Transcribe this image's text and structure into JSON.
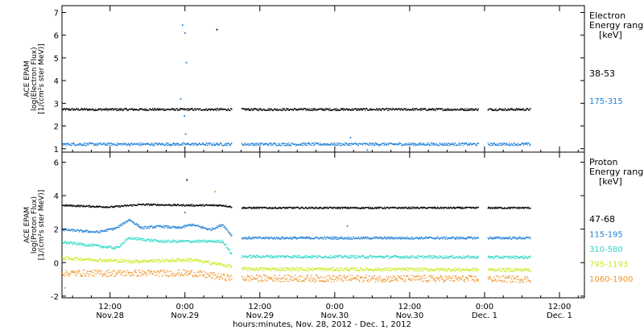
{
  "chart_data": {
    "type": "scatter",
    "xlabel": "hours:minutes, Nov. 28, 2012 - Dec. 1, 2012",
    "x_ticks": [
      {
        "time": "12:00",
        "date": "Nov.28",
        "hours": 12
      },
      {
        "time": "0:00",
        "date": "Nov.29",
        "hours": 24
      },
      {
        "time": "12:00",
        "date": "Nov.29",
        "hours": 36
      },
      {
        "time": "0:00",
        "date": "Nov.30",
        "hours": 48
      },
      {
        "time": "12:00",
        "date": "Nov.30",
        "hours": 60
      },
      {
        "time": "0:00",
        "date": "Dec. 1",
        "hours": 72
      },
      {
        "time": "12:00",
        "date": "Dec. 1",
        "hours": 84
      }
    ],
    "xlim": [
      4.3,
      88
    ],
    "x_unit_note": "hours after 0:00 Nov. 28, 2012",
    "data_gaps_hours": [
      [
        31.5,
        33.0
      ],
      [
        71.0,
        72.4
      ]
    ],
    "data_end_hours": 79.3,
    "panels": [
      {
        "id": "electron",
        "ylabel": [
          "ACE EPAM",
          "log(Electron Flux)",
          "[1/(cm²s ster MeV)]"
        ],
        "ylim": [
          0.85,
          7.3
        ],
        "yticks": [
          1,
          2,
          3,
          4,
          5,
          6,
          7
        ],
        "legend_title": [
          "Electron",
          "Energy ranges",
          "[keV]"
        ],
        "series": [
          {
            "name": "38-53",
            "color": "#000000",
            "profile": [
              [
                4.3,
                2.75
              ],
              [
                79.3,
                2.75
              ]
            ],
            "scatter": 0.05
          },
          {
            "name": "175-315",
            "color": "#1f7fd6",
            "profile": [
              [
                4.3,
                1.22
              ],
              [
                79.3,
                1.22
              ]
            ],
            "scatter": 0.06
          }
        ],
        "outliers": [
          {
            "x": 23.6,
            "y": 6.45,
            "color": "#1f7fd6"
          },
          {
            "x": 24.0,
            "y": 6.1,
            "color": "#1f7fd6"
          },
          {
            "x": 29.1,
            "y": 6.25,
            "color": "#000000"
          },
          {
            "x": 24.2,
            "y": 4.8,
            "color": "#1f7fd6"
          },
          {
            "x": 23.3,
            "y": 3.2,
            "color": "#1f7fd6"
          },
          {
            "x": 23.9,
            "y": 2.45,
            "color": "#1f7fd6"
          },
          {
            "x": 24.1,
            "y": 1.65,
            "color": "#1f7fd6"
          },
          {
            "x": 50.5,
            "y": 1.5,
            "color": "#1f7fd6"
          },
          {
            "x": 53.2,
            "y": 0.95,
            "color": "#1f7fd6"
          }
        ]
      },
      {
        "id": "proton",
        "ylabel": [
          "ACE EPAM",
          "log(Proton Flux)",
          "[1/(cm²s ster MeV)]"
        ],
        "ylim": [
          -2.1,
          6.6
        ],
        "yticks": [
          -2,
          0,
          2,
          4,
          6
        ],
        "legend_title": [
          "Proton",
          "Energy ranges",
          "[keV]"
        ],
        "series": [
          {
            "name": "47-68",
            "color": "#000000",
            "profile": [
              [
                4.3,
                3.45
              ],
              [
                12,
                3.35
              ],
              [
                17,
                3.5
              ],
              [
                25,
                3.45
              ],
              [
                30,
                3.45
              ],
              [
                31.5,
                3.35
              ],
              [
                33,
                3.3
              ],
              [
                79.3,
                3.3
              ]
            ],
            "scatter": 0.05
          },
          {
            "name": "115-195",
            "color": "#1f7fd6",
            "profile": [
              [
                4.3,
                2.0
              ],
              [
                10,
                1.85
              ],
              [
                13,
                2.1
              ],
              [
                15,
                2.6
              ],
              [
                17,
                2.1
              ],
              [
                20,
                2.2
              ],
              [
                23,
                2.1
              ],
              [
                25,
                2.3
              ],
              [
                28,
                2.0
              ],
              [
                30,
                2.3
              ],
              [
                31.5,
                1.6
              ],
              [
                33,
                1.5
              ],
              [
                79.3,
                1.5
              ]
            ],
            "scatter": 0.07
          },
          {
            "name": "310-580",
            "color": "#2fd8c8",
            "profile": [
              [
                4.3,
                1.25
              ],
              [
                13,
                0.9
              ],
              [
                15,
                1.5
              ],
              [
                20,
                1.3
              ],
              [
                25,
                1.3
              ],
              [
                30,
                1.3
              ],
              [
                31.5,
                0.5
              ],
              [
                33,
                0.4
              ],
              [
                79.3,
                0.35
              ]
            ],
            "scatter": 0.08
          },
          {
            "name": "795-1193",
            "color": "#c8ec20",
            "profile": [
              [
                4.3,
                0.3
              ],
              [
                15,
                0.1
              ],
              [
                25,
                0.2
              ],
              [
                31.5,
                -0.2
              ],
              [
                33,
                -0.35
              ],
              [
                79.3,
                -0.4
              ]
            ],
            "scatter": 0.1
          },
          {
            "name": "1060-1900",
            "color": "#f0962a",
            "profile": [
              [
                4.3,
                -0.6
              ],
              [
                15,
                -0.6
              ],
              [
                25,
                -0.6
              ],
              [
                31.5,
                -0.9
              ],
              [
                33,
                -0.9
              ],
              [
                79.3,
                -0.95
              ]
            ],
            "scatter": 0.2
          }
        ],
        "outliers": [
          {
            "x": 24.3,
            "y": 4.95,
            "color": "#000000"
          },
          {
            "x": 28.8,
            "y": 4.25,
            "color": "#f0962a"
          },
          {
            "x": 24.0,
            "y": 3.0,
            "color": "#1f7fd6"
          },
          {
            "x": 50.0,
            "y": 2.2,
            "color": "#1f7fd6"
          },
          {
            "x": 4.8,
            "y": -1.5,
            "color": "#f0962a"
          }
        ]
      }
    ]
  }
}
